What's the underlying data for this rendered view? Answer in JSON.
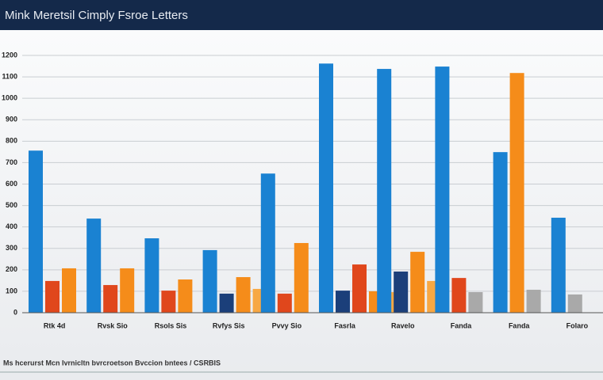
{
  "chart_data": {
    "type": "bar",
    "title": "Mink Meretsil Cimply Fsroe Letters",
    "note": "Ms hcerurst Mcn Ivrnicltn bvrcroetson Bvccion bntees / CSRBIS",
    "categories": [
      "Rtk 4d",
      "Rvsk Sio",
      "Rsols Sis",
      "Rvfys Sis",
      "Pvvy Sio",
      "Fasrla",
      "Ravelo",
      "Fanda",
      "Fanda",
      "Folaro"
    ],
    "series": [
      {
        "color": "#1a82d2",
        "values": [
          756,
          439,
          347,
          292,
          649,
          1162,
          1137,
          1148,
          749,
          443
        ]
      },
      {
        "color": "#1b3f7a",
        "values": [
          null,
          null,
          null,
          89,
          null,
          103,
          192,
          null,
          null,
          null
        ]
      },
      {
        "color": "#e0471c",
        "values": [
          148,
          129,
          103,
          null,
          89,
          225,
          null,
          162,
          null,
          null
        ]
      },
      {
        "color": "#f58c1a",
        "values": [
          207,
          207,
          155,
          166,
          325,
          100,
          284,
          null,
          1118,
          null
        ]
      },
      {
        "color": "#f7a844",
        "values": [
          null,
          null,
          null,
          111,
          null,
          96,
          148,
          null,
          null,
          null
        ]
      },
      {
        "color": "#a9a9a9",
        "values": [
          null,
          null,
          null,
          null,
          null,
          null,
          null,
          96,
          107,
          85
        ]
      }
    ],
    "ylim": [
      0,
      1200
    ],
    "yticks": [
      0,
      100,
      200,
      300,
      400,
      500,
      600,
      700,
      800,
      900,
      1000,
      1100,
      1200
    ],
    "grid": true
  }
}
